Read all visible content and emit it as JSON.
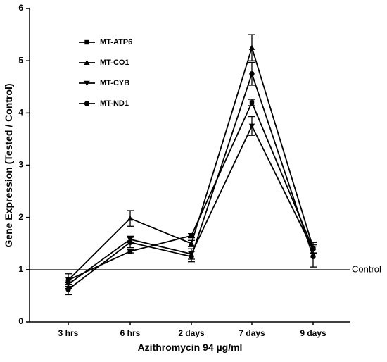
{
  "chart_data": {
    "type": "line",
    "title": "",
    "xlabel": "Azithromycin 94 µg/ml",
    "ylabel": "Gene Expression (Tested / Control)",
    "categories": [
      "3 hrs",
      "6 hrs",
      "2 days",
      "7 days",
      "9 days"
    ],
    "ylim": [
      0,
      6
    ],
    "yticks": [
      "0",
      "1",
      "2",
      "3",
      "4",
      "5",
      "6"
    ],
    "grid": false,
    "legend_position": "top-left",
    "reference_line": {
      "value": 1,
      "label": "Control"
    },
    "series": [
      {
        "name": "MT-ATP6",
        "marker": "square",
        "values": [
          0.8,
          1.35,
          1.65,
          4.2,
          1.4
        ],
        "errors": [
          0.05,
          0.03,
          0.04,
          0.06,
          0.08
        ]
      },
      {
        "name": "MT-CO1",
        "marker": "triangle-up",
        "values": [
          0.8,
          1.98,
          1.5,
          5.25,
          1.42
        ],
        "errors": [
          0.12,
          0.15,
          0.06,
          0.25,
          0.1
        ]
      },
      {
        "name": "MT-CYB",
        "marker": "triangle-down",
        "values": [
          0.72,
          1.58,
          1.3,
          3.75,
          1.38
        ],
        "errors": [
          0.08,
          0.06,
          0.1,
          0.18,
          0.07
        ]
      },
      {
        "name": "MT-ND1",
        "marker": "circle",
        "values": [
          0.62,
          1.52,
          1.25,
          4.75,
          1.25
        ],
        "errors": [
          0.1,
          0.1,
          0.1,
          0.22,
          0.2
        ]
      }
    ]
  }
}
